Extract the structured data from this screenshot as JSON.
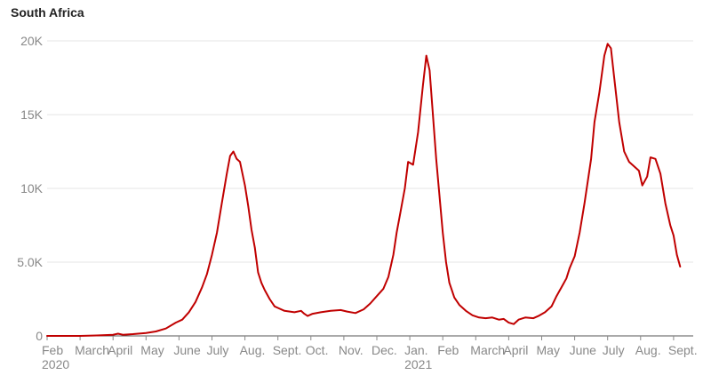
{
  "chart_data": {
    "type": "line",
    "title": "South Africa",
    "xlabel": "",
    "ylabel": "",
    "ylim": [
      0,
      20000
    ],
    "y_ticks": [
      {
        "value": 0,
        "label": "0"
      },
      {
        "value": 5000,
        "label": "5.0K"
      },
      {
        "value": 10000,
        "label": "10K"
      },
      {
        "value": 15000,
        "label": "15K"
      },
      {
        "value": 20000,
        "label": "20K"
      }
    ],
    "x_ticks": [
      {
        "month": 0,
        "label": "Feb",
        "sublabel": "2020"
      },
      {
        "month": 1,
        "label": "March",
        "sublabel": ""
      },
      {
        "month": 2,
        "label": "April",
        "sublabel": ""
      },
      {
        "month": 3,
        "label": "May",
        "sublabel": ""
      },
      {
        "month": 4,
        "label": "June",
        "sublabel": ""
      },
      {
        "month": 5,
        "label": "July",
        "sublabel": ""
      },
      {
        "month": 6,
        "label": "Aug.",
        "sublabel": ""
      },
      {
        "month": 7,
        "label": "Sept.",
        "sublabel": ""
      },
      {
        "month": 8,
        "label": "Oct.",
        "sublabel": ""
      },
      {
        "month": 9,
        "label": "Nov.",
        "sublabel": ""
      },
      {
        "month": 10,
        "label": "Dec.",
        "sublabel": ""
      },
      {
        "month": 11,
        "label": "Jan.",
        "sublabel": "2021"
      },
      {
        "month": 12,
        "label": "Feb",
        "sublabel": ""
      },
      {
        "month": 13,
        "label": "March",
        "sublabel": ""
      },
      {
        "month": 14,
        "label": "April",
        "sublabel": ""
      },
      {
        "month": 15,
        "label": "May",
        "sublabel": ""
      },
      {
        "month": 16,
        "label": "June",
        "sublabel": ""
      },
      {
        "month": 17,
        "label": "July",
        "sublabel": ""
      },
      {
        "month": 18,
        "label": "Aug.",
        "sublabel": ""
      },
      {
        "month": 19,
        "label": "Sept.",
        "sublabel": ""
      }
    ],
    "series": [
      {
        "color": "#c00000",
        "points": [
          [
            0.0,
            0
          ],
          [
            1.0,
            0
          ],
          [
            1.5,
            30
          ],
          [
            2.0,
            80
          ],
          [
            2.15,
            150
          ],
          [
            2.3,
            80
          ],
          [
            2.6,
            120
          ],
          [
            3.0,
            200
          ],
          [
            3.3,
            300
          ],
          [
            3.6,
            500
          ],
          [
            3.9,
            900
          ],
          [
            4.1,
            1100
          ],
          [
            4.3,
            1600
          ],
          [
            4.5,
            2300
          ],
          [
            4.7,
            3300
          ],
          [
            4.85,
            4200
          ],
          [
            5.0,
            5500
          ],
          [
            5.15,
            7000
          ],
          [
            5.3,
            9000
          ],
          [
            5.45,
            11000
          ],
          [
            5.55,
            12200
          ],
          [
            5.65,
            12500
          ],
          [
            5.75,
            12000
          ],
          [
            5.85,
            11800
          ],
          [
            6.0,
            10200
          ],
          [
            6.1,
            8800
          ],
          [
            6.2,
            7200
          ],
          [
            6.3,
            6000
          ],
          [
            6.4,
            4300
          ],
          [
            6.5,
            3600
          ],
          [
            6.6,
            3100
          ],
          [
            6.75,
            2500
          ],
          [
            6.9,
            2000
          ],
          [
            7.0,
            1900
          ],
          [
            7.2,
            1700
          ],
          [
            7.5,
            1600
          ],
          [
            7.7,
            1700
          ],
          [
            7.8,
            1500
          ],
          [
            7.9,
            1350
          ],
          [
            8.05,
            1500
          ],
          [
            8.3,
            1600
          ],
          [
            8.6,
            1700
          ],
          [
            8.9,
            1750
          ],
          [
            9.1,
            1650
          ],
          [
            9.35,
            1550
          ],
          [
            9.6,
            1800
          ],
          [
            9.8,
            2200
          ],
          [
            10.0,
            2700
          ],
          [
            10.2,
            3200
          ],
          [
            10.35,
            4000
          ],
          [
            10.5,
            5500
          ],
          [
            10.6,
            7000
          ],
          [
            10.7,
            8200
          ],
          [
            10.85,
            10000
          ],
          [
            10.95,
            11800
          ],
          [
            11.1,
            11600
          ],
          [
            11.25,
            13800
          ],
          [
            11.4,
            17000
          ],
          [
            11.5,
            19000
          ],
          [
            11.6,
            18000
          ],
          [
            11.7,
            15000
          ],
          [
            11.8,
            12000
          ],
          [
            11.9,
            9500
          ],
          [
            12.0,
            7000
          ],
          [
            12.1,
            5000
          ],
          [
            12.2,
            3600
          ],
          [
            12.35,
            2600
          ],
          [
            12.5,
            2100
          ],
          [
            12.7,
            1700
          ],
          [
            12.9,
            1400
          ],
          [
            13.1,
            1250
          ],
          [
            13.3,
            1200
          ],
          [
            13.5,
            1250
          ],
          [
            13.7,
            1100
          ],
          [
            13.85,
            1150
          ],
          [
            14.0,
            900
          ],
          [
            14.15,
            800
          ],
          [
            14.3,
            1100
          ],
          [
            14.5,
            1250
          ],
          [
            14.75,
            1200
          ],
          [
            14.9,
            1350
          ],
          [
            15.1,
            1600
          ],
          [
            15.3,
            2000
          ],
          [
            15.45,
            2700
          ],
          [
            15.6,
            3300
          ],
          [
            15.75,
            3900
          ],
          [
            15.85,
            4600
          ],
          [
            16.0,
            5400
          ],
          [
            16.15,
            7000
          ],
          [
            16.3,
            9000
          ],
          [
            16.5,
            12000
          ],
          [
            16.6,
            14500
          ],
          [
            16.75,
            16500
          ],
          [
            16.9,
            19000
          ],
          [
            17.0,
            19800
          ],
          [
            17.1,
            19500
          ],
          [
            17.2,
            17500
          ],
          [
            17.35,
            14500
          ],
          [
            17.5,
            12500
          ],
          [
            17.65,
            11800
          ],
          [
            17.8,
            11500
          ],
          [
            17.95,
            11200
          ],
          [
            18.05,
            10200
          ],
          [
            18.2,
            10800
          ],
          [
            18.3,
            12100
          ],
          [
            18.45,
            12000
          ],
          [
            18.6,
            11000
          ],
          [
            18.75,
            9000
          ],
          [
            18.9,
            7500
          ],
          [
            19.0,
            6800
          ],
          [
            19.1,
            5500
          ],
          [
            19.2,
            4700
          ]
        ]
      }
    ]
  }
}
